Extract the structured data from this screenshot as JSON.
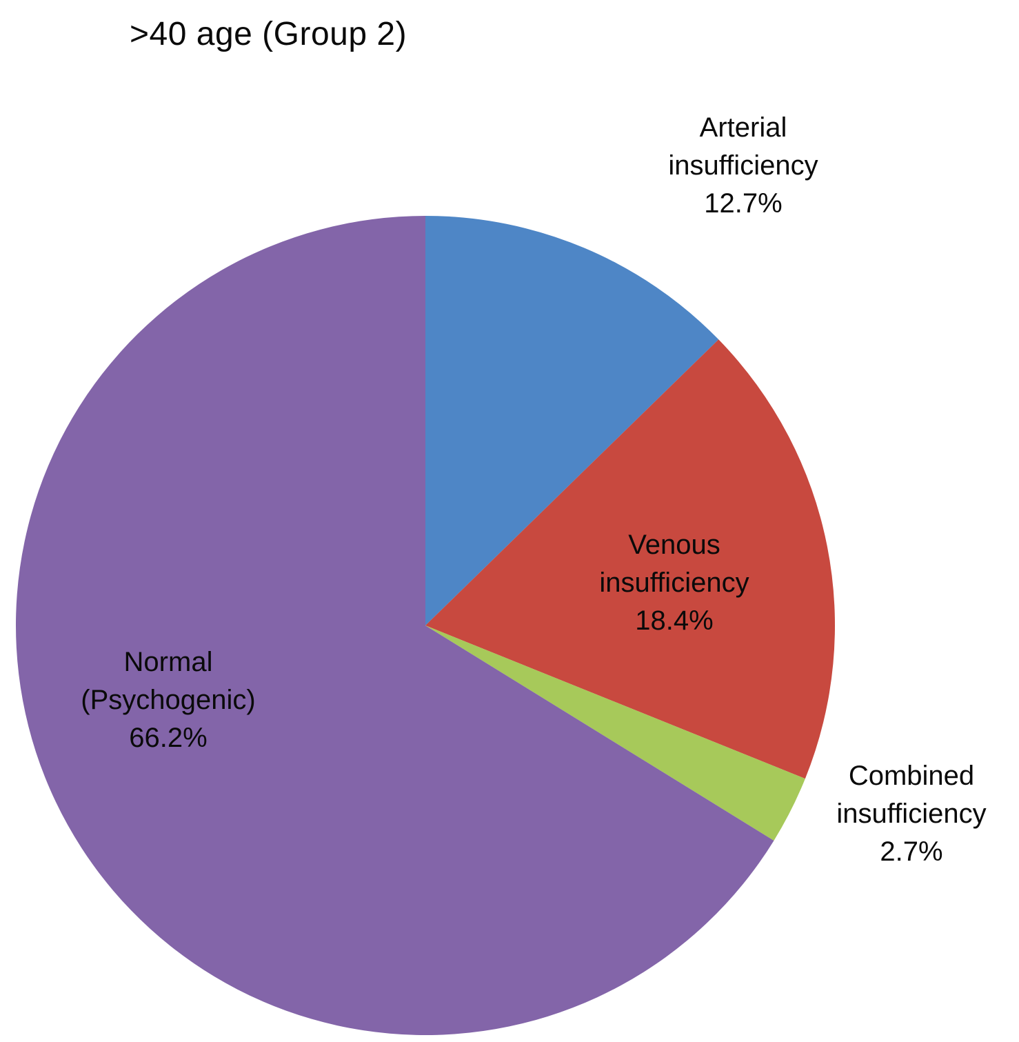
{
  "chart_data": {
    "type": "pie",
    "title": ">40 age (Group 2)",
    "start_angle_deg_from_top": 0,
    "direction": "clockwise",
    "legend_position": "none",
    "slices": [
      {
        "label": "Arterial insufficiency",
        "value": 12.7,
        "color": "#4e86c6",
        "label_lines": [
          "Arterial",
          "insufficiency",
          "12.7%"
        ],
        "label_placement": "outside-top-right"
      },
      {
        "label": "Venous insufficiency",
        "value": 18.4,
        "color": "#c8493f",
        "label_lines": [
          "Venous",
          "insufficiency",
          "18.4%"
        ],
        "label_placement": "inside"
      },
      {
        "label": "Combined insufficiency",
        "value": 2.7,
        "color": "#a7c95a",
        "label_lines": [
          "Combined",
          "insufficiency",
          "2.7%"
        ],
        "label_placement": "outside-right"
      },
      {
        "label": "Normal (Psychogenic)",
        "value": 66.2,
        "color": "#8365a9",
        "label_lines": [
          "Normal",
          "(Psychogenic)",
          "66.2%"
        ],
        "label_placement": "inside"
      }
    ]
  }
}
